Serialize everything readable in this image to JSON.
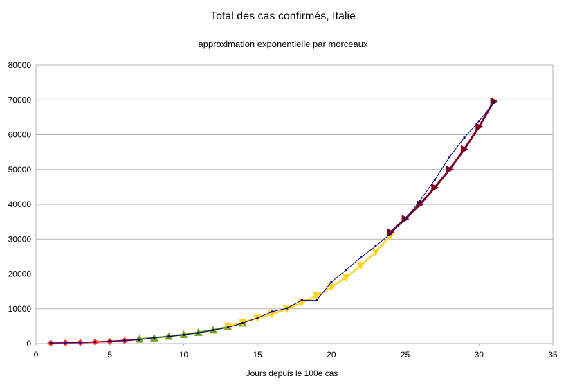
{
  "chart_data": {
    "type": "line",
    "title": "Total des cas confirmés, Italie",
    "subtitle": "approximation exponentielle par morceaux",
    "xlabel": "Jours depuis le 100e cas",
    "ylabel": "",
    "xlim": [
      0,
      35
    ],
    "ylim": [
      0,
      80000
    ],
    "x_ticks": [
      "0",
      "5",
      "10",
      "15",
      "20",
      "25",
      "30",
      "35"
    ],
    "y_ticks": [
      "0",
      "10000",
      "20000",
      "30000",
      "40000",
      "50000",
      "60000",
      "70000",
      "80000"
    ],
    "grid": true,
    "legend": "none",
    "series": [
      {
        "color": "#ff3333",
        "marker": "diamond",
        "x": [
          1,
          2,
          3,
          4,
          5,
          6,
          7
        ],
        "y": [
          150,
          220,
          310,
          440,
          620,
          870,
          1230
        ]
      },
      {
        "color": "#70a020",
        "marker": "triangle-up",
        "x": [
          7,
          8,
          9,
          10,
          11,
          12,
          13,
          14
        ],
        "y": [
          1300,
          1650,
          2100,
          2600,
          3200,
          3900,
          4800,
          5900
        ]
      },
      {
        "color": "#ffd320",
        "marker": "triangle-down",
        "x": [
          13,
          14,
          15,
          16,
          17,
          18,
          19,
          20,
          21,
          22,
          23,
          24
        ],
        "y": [
          5000,
          6100,
          7300,
          8500,
          9900,
          11700,
          13700,
          16200,
          19000,
          22400,
          26300,
          31000
        ]
      },
      {
        "color": "#7f0020",
        "marker": "triangle-right",
        "x": [
          24,
          25,
          26,
          27,
          28,
          29,
          30,
          31
        ],
        "y": [
          32000,
          35800,
          40000,
          44800,
          50000,
          55800,
          62300,
          69600
        ]
      },
      {
        "color": "#000080",
        "marker": "dot",
        "x": [
          1,
          2,
          3,
          4,
          5,
          6,
          7,
          8,
          9,
          10,
          11,
          12,
          13,
          14,
          15,
          16,
          17,
          18,
          19,
          20,
          21,
          22,
          23,
          24,
          25,
          26,
          27,
          28,
          29,
          30,
          31
        ],
        "y": [
          157,
          229,
          323,
          470,
          655,
          889,
          1128,
          1694,
          2036,
          2502,
          3089,
          3858,
          4636,
          5883,
          7375,
          9172,
          10149,
          12462,
          12462,
          17660,
          21157,
          24747,
          27980,
          31506,
          35713,
          41035,
          47021,
          53578,
          59138,
          63927,
          69176
        ]
      }
    ]
  }
}
